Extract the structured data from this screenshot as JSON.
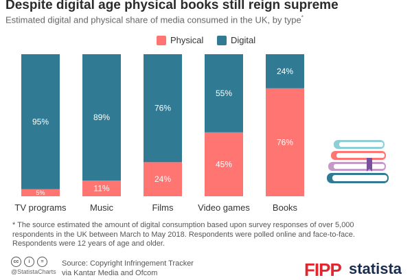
{
  "header": {
    "title": "Despite digital age physical books still reign supreme",
    "subtitle": "Estimated digital and physical share of media consumed in the UK, by type",
    "subtitle_marker": "*"
  },
  "chart_data": {
    "type": "bar",
    "stacked": true,
    "title": "Despite digital age physical books still reign supreme",
    "subtitle": "Estimated digital and physical share of media consumed in the UK, by type*",
    "categories": [
      "TV programs",
      "Music",
      "Films",
      "Video games",
      "Books"
    ],
    "series": [
      {
        "name": "Physical",
        "color": "#fe7572",
        "values": [
          5,
          11,
          24,
          45,
          76
        ]
      },
      {
        "name": "Digital",
        "color": "#317a93",
        "values": [
          95,
          89,
          76,
          55,
          24
        ]
      }
    ],
    "ylim": [
      0,
      100
    ],
    "value_format": "{v}%",
    "legend_placement": "top-center",
    "grid": false
  },
  "footnote": "* The source estimated the amount of digital consumption based upon survey responses of over 5,000 respondents in the UK between March to May 2018. Respondents were polled online and face-to-face. Respondents were 12 years of age and older.",
  "footer": {
    "license_icons": [
      "cc-icon",
      "by-icon",
      "equals-icon"
    ],
    "license_icon_text": [
      "cc",
      "i",
      "="
    ],
    "handle": "@StatistaCharts",
    "source_line1": "Source: Copyright Infringement Tracker",
    "source_line2": "via Kantar Media and Ofcom",
    "brand1": "FIPP",
    "brand2": "statista"
  },
  "colors": {
    "physical": "#fe7572",
    "digital": "#317a93",
    "title": "#2b2b2b",
    "book_colors": [
      "#8ecfd6",
      "#fe7572",
      "#c59ac9",
      "#317a93"
    ]
  }
}
